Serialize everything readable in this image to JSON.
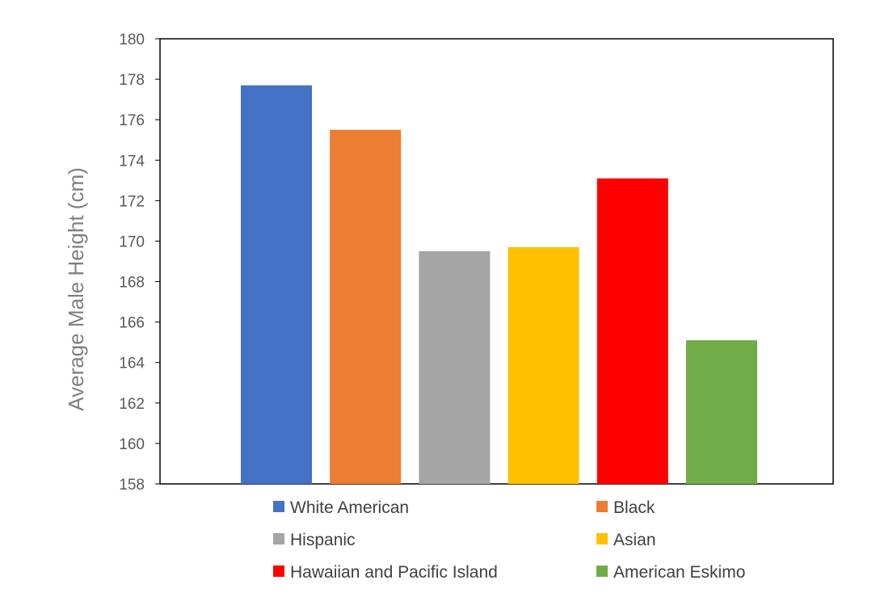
{
  "chart_data": {
    "type": "bar",
    "categories": [
      "White American",
      "Black",
      "Hispanic",
      "Asian",
      "Hawaiian and Pacific Island",
      "American Eskimo"
    ],
    "values": [
      177.7,
      175.5,
      169.5,
      169.7,
      173.1,
      165.1
    ],
    "colors": [
      "#4472C4",
      "#ED7D31",
      "#A5A5A5",
      "#FFC000",
      "#FF0000",
      "#70AD47"
    ],
    "title": "",
    "xlabel": "",
    "ylabel": "Average Male Height (cm)",
    "ylim": [
      158,
      180
    ],
    "yticks": [
      "158",
      "160",
      "162",
      "164",
      "166",
      "168",
      "170",
      "172",
      "174",
      "176",
      "178",
      "180"
    ],
    "grid": false,
    "legend_position": "bottom"
  }
}
